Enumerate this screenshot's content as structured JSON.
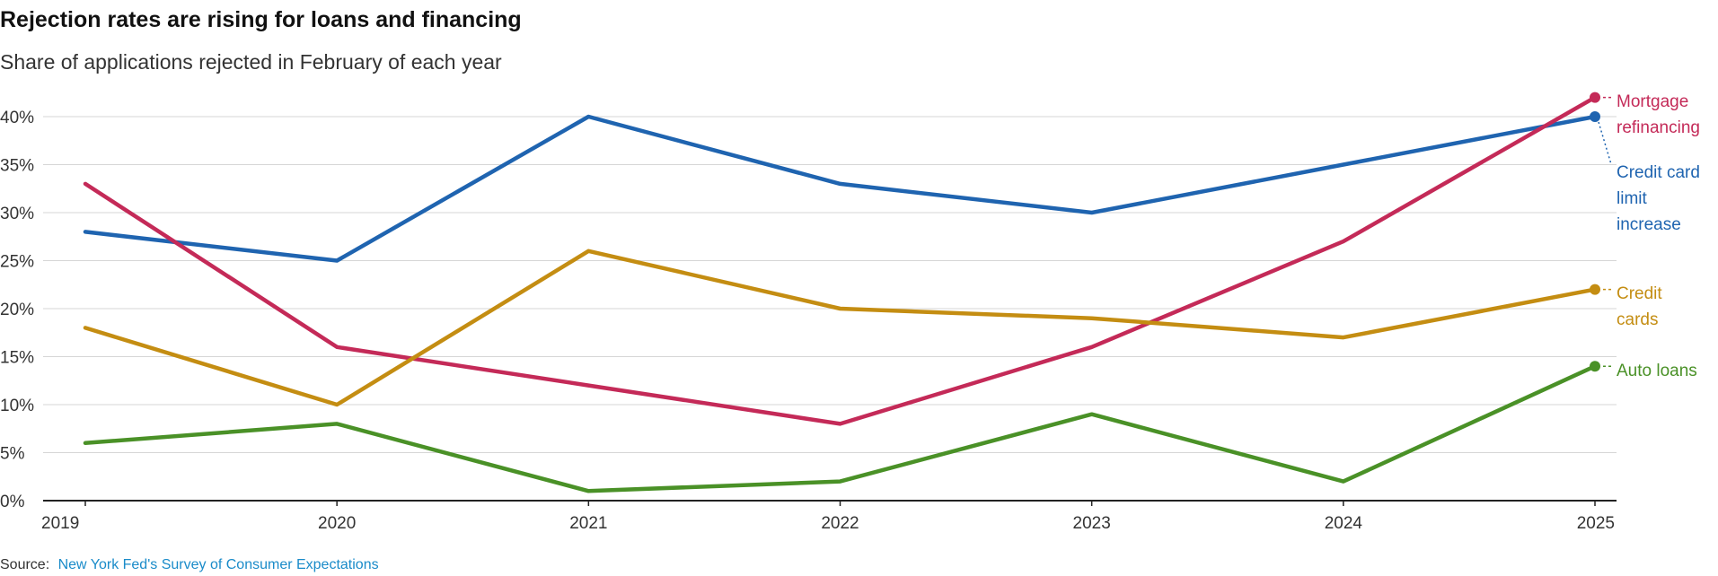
{
  "title": "Rejection rates are rising for loans and financing",
  "subtitle": "Share of applications rejected in February of each year",
  "source": {
    "label": "Source:",
    "link_text": "New York Fed's Survey of Consumer Expectations",
    "link_color": "#1a8bc9"
  },
  "chart_data": {
    "type": "line",
    "title": "Rejection rates are rising for loans and financing",
    "subtitle": "Share of applications rejected in February of each year",
    "xlabel": "",
    "ylabel": "",
    "x": [
      2019,
      2020,
      2021,
      2022,
      2023,
      2024,
      2025
    ],
    "ylim": [
      0,
      40
    ],
    "y_ticks": [
      0,
      5,
      10,
      15,
      20,
      25,
      30,
      35,
      40
    ],
    "y_tick_labels": [
      "0%",
      "5%",
      "10%",
      "15%",
      "20%",
      "25%",
      "30%",
      "35%",
      "40%"
    ],
    "x_tick_labels": [
      "2019",
      "2020",
      "2021",
      "2022",
      "2023",
      "2024",
      "2025"
    ],
    "grid": true,
    "legend": "direct labels at right end of lines",
    "series": [
      {
        "name": "Credit card limit increase",
        "label_lines": [
          "Credit card",
          "limit",
          "increase"
        ],
        "color": "#1f64b0",
        "values": [
          28,
          25,
          40,
          33,
          30,
          35,
          40
        ]
      },
      {
        "name": "Mortgage refinancing",
        "label_lines": [
          "Mortgage",
          "refinancing"
        ],
        "color": "#c42a58",
        "values": [
          33,
          16,
          12,
          8,
          16,
          27,
          42
        ]
      },
      {
        "name": "Credit cards",
        "label_lines": [
          "Credit",
          "cards"
        ],
        "color": "#c48d12",
        "values": [
          18,
          10,
          26,
          20,
          19,
          17,
          22
        ]
      },
      {
        "name": "Auto loans",
        "label_lines": [
          "Auto loans"
        ],
        "color": "#4a9127",
        "values": [
          6,
          8,
          1,
          2,
          9,
          2,
          14
        ]
      }
    ]
  }
}
